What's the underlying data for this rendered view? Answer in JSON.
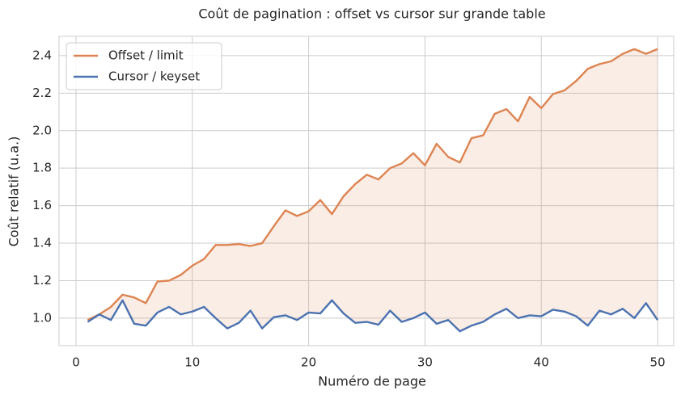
{
  "chart_data": {
    "type": "line",
    "title": "Coût de pagination : offset vs cursor sur grande table",
    "xlabel": "Numéro de page",
    "ylabel": "Coût relatif (u.a.)",
    "x": [
      1,
      2,
      3,
      4,
      5,
      6,
      7,
      8,
      9,
      10,
      11,
      12,
      13,
      14,
      15,
      16,
      17,
      18,
      19,
      20,
      21,
      22,
      23,
      24,
      25,
      26,
      27,
      28,
      29,
      30,
      31,
      32,
      33,
      34,
      35,
      36,
      37,
      38,
      39,
      40,
      41,
      42,
      43,
      44,
      45,
      46,
      47,
      48,
      49,
      50
    ],
    "series": [
      {
        "name": "Offset / limit",
        "color": "#dd8452",
        "values": [
          0.99,
          1.02,
          1.06,
          1.125,
          1.11,
          1.08,
          1.195,
          1.2,
          1.23,
          1.28,
          1.315,
          1.39,
          1.39,
          1.395,
          1.385,
          1.4,
          1.49,
          1.575,
          1.545,
          1.57,
          1.63,
          1.555,
          1.65,
          1.715,
          1.765,
          1.74,
          1.8,
          1.825,
          1.88,
          1.815,
          1.93,
          1.86,
          1.83,
          1.96,
          1.975,
          2.09,
          2.115,
          2.05,
          2.18,
          2.12,
          2.195,
          2.215,
          2.265,
          2.33,
          2.355,
          2.37,
          2.41,
          2.435,
          2.41,
          2.435
        ]
      },
      {
        "name": "Cursor / keyset",
        "color": "#4c72b0",
        "values": [
          0.98,
          1.02,
          0.99,
          1.095,
          0.97,
          0.96,
          1.03,
          1.06,
          1.02,
          1.035,
          1.06,
          1.0,
          0.945,
          0.975,
          1.04,
          0.945,
          1.005,
          1.015,
          0.99,
          1.03,
          1.025,
          1.095,
          1.025,
          0.975,
          0.98,
          0.965,
          1.04,
          0.98,
          1.0,
          1.03,
          0.97,
          0.99,
          0.93,
          0.96,
          0.98,
          1.02,
          1.05,
          1.0,
          1.015,
          1.01,
          1.045,
          1.035,
          1.01,
          0.96,
          1.04,
          1.02,
          1.05,
          1.0,
          1.08,
          0.99
        ]
      }
    ],
    "fill_between": {
      "color": "#dd8452",
      "opacity": 0.15
    },
    "xlim": [
      -1.46,
      51.39
    ],
    "xticks": [
      0,
      10,
      20,
      30,
      40,
      50
    ],
    "ylim": [
      0.853,
      2.503
    ],
    "yticks": [
      {
        "value": 1.0,
        "label": "1.0"
      },
      {
        "value": 1.2,
        "label": "1.2"
      },
      {
        "value": 1.4,
        "label": "1.4"
      },
      {
        "value": 1.6,
        "label": "1.6"
      },
      {
        "value": 1.8,
        "label": "1.8"
      },
      {
        "value": 2.0,
        "label": "2.0"
      },
      {
        "value": 2.2,
        "label": "2.2"
      },
      {
        "value": 2.4,
        "label": "2.4"
      }
    ],
    "grid": true,
    "legend": "upper left"
  }
}
